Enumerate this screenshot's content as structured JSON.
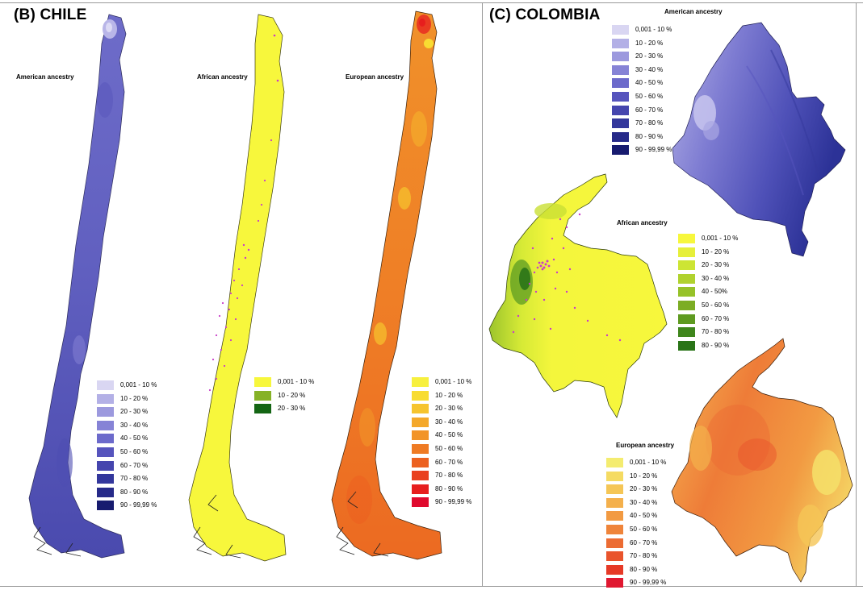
{
  "panels": {
    "chile": {
      "title": "(B) CHILE",
      "american": {
        "title": "American ancestry",
        "legend": [
          {
            "label": "0,001 - 10 %",
            "color": "#d9d6f2"
          },
          {
            "label": "10 - 20 %",
            "color": "#b3b0e6"
          },
          {
            "label": "20 - 30 %",
            "color": "#9c99de"
          },
          {
            "label": "30 - 40 %",
            "color": "#8683d6"
          },
          {
            "label": "40 - 50 %",
            "color": "#6c6acb"
          },
          {
            "label": "50 - 60 %",
            "color": "#5654bd"
          },
          {
            "label": "60 - 70 %",
            "color": "#4545ae"
          },
          {
            "label": "70 - 80 %",
            "color": "#33379c"
          },
          {
            "label": "80 - 90 %",
            "color": "#262a89"
          },
          {
            "label": "90 - 99,99 %",
            "color": "#171b6f"
          }
        ]
      },
      "african": {
        "title": "African ancestry",
        "legend": [
          {
            "label": "0,001 - 10 %",
            "color": "#f7f73c"
          },
          {
            "label": "10 - 20 %",
            "color": "#86b227"
          },
          {
            "label": "20 - 30 %",
            "color": "#146514"
          }
        ]
      },
      "european": {
        "title": "European ancestry",
        "legend": [
          {
            "label": "0,001 - 10 %",
            "color": "#f7f03e"
          },
          {
            "label": "10 - 20 %",
            "color": "#f8dc32"
          },
          {
            "label": "20 - 30 %",
            "color": "#f6c42e"
          },
          {
            "label": "30 - 40 %",
            "color": "#f4a82a"
          },
          {
            "label": "40 - 50 %",
            "color": "#f29428"
          },
          {
            "label": "50 - 60 %",
            "color": "#ef7b24"
          },
          {
            "label": "60 - 70 %",
            "color": "#ec6120"
          },
          {
            "label": "70 - 80 %",
            "color": "#e9401e"
          },
          {
            "label": "80 - 90 %",
            "color": "#e71e1e"
          },
          {
            "label": "90 - 99,99 %",
            "color": "#e00a2e"
          }
        ]
      }
    },
    "colombia": {
      "title": "(C) COLOMBIA",
      "american": {
        "title": "American ancestry",
        "legend": [
          {
            "label": "0,001 - 10 %",
            "color": "#d9d6f2"
          },
          {
            "label": "10 - 20 %",
            "color": "#b3b0e6"
          },
          {
            "label": "20 - 30 %",
            "color": "#9c99de"
          },
          {
            "label": "30 - 40 %",
            "color": "#8683d6"
          },
          {
            "label": "40 - 50 %",
            "color": "#6c6acb"
          },
          {
            "label": "50 - 60 %",
            "color": "#5654bd"
          },
          {
            "label": "60 - 70 %",
            "color": "#4545ae"
          },
          {
            "label": "70 - 80 %",
            "color": "#33379c"
          },
          {
            "label": "80 - 90 %",
            "color": "#262a89"
          },
          {
            "label": "90 - 99,99 %",
            "color": "#171b6f"
          }
        ]
      },
      "african": {
        "title": "African ancestry",
        "legend": [
          {
            "label": "0,001 - 10 %",
            "color": "#f7f73c"
          },
          {
            "label": "10 - 20 %",
            "color": "#e6ef3a"
          },
          {
            "label": "20 - 30 %",
            "color": "#cde534"
          },
          {
            "label": "30 - 40 %",
            "color": "#b0d22e"
          },
          {
            "label": "40 - 50%",
            "color": "#96c228"
          },
          {
            "label": "50 - 60 %",
            "color": "#7cad24"
          },
          {
            "label": "60 - 70 %",
            "color": "#5e9a20"
          },
          {
            "label": "70 - 80 %",
            "color": "#3f861c"
          },
          {
            "label": "80 - 90 %",
            "color": "#2a7418"
          }
        ]
      },
      "european": {
        "title": "European ancestry",
        "legend": [
          {
            "label": "0,001 - 10 %",
            "color": "#f4ec70"
          },
          {
            "label": "10 - 20 %",
            "color": "#f5db62"
          },
          {
            "label": "20 - 30 %",
            "color": "#f5c656"
          },
          {
            "label": "30 - 40 %",
            "color": "#f4b04c"
          },
          {
            "label": "40 - 50 %",
            "color": "#f29a42"
          },
          {
            "label": "50 - 60 %",
            "color": "#ef843a"
          },
          {
            "label": "60 - 70 %",
            "color": "#ec6c33"
          },
          {
            "label": "70 - 80 %",
            "color": "#e9542c"
          },
          {
            "label": "80 - 90 %",
            "color": "#e63a27"
          },
          {
            "label": "90 - 99,99 %",
            "color": "#e01830"
          }
        ]
      }
    }
  }
}
